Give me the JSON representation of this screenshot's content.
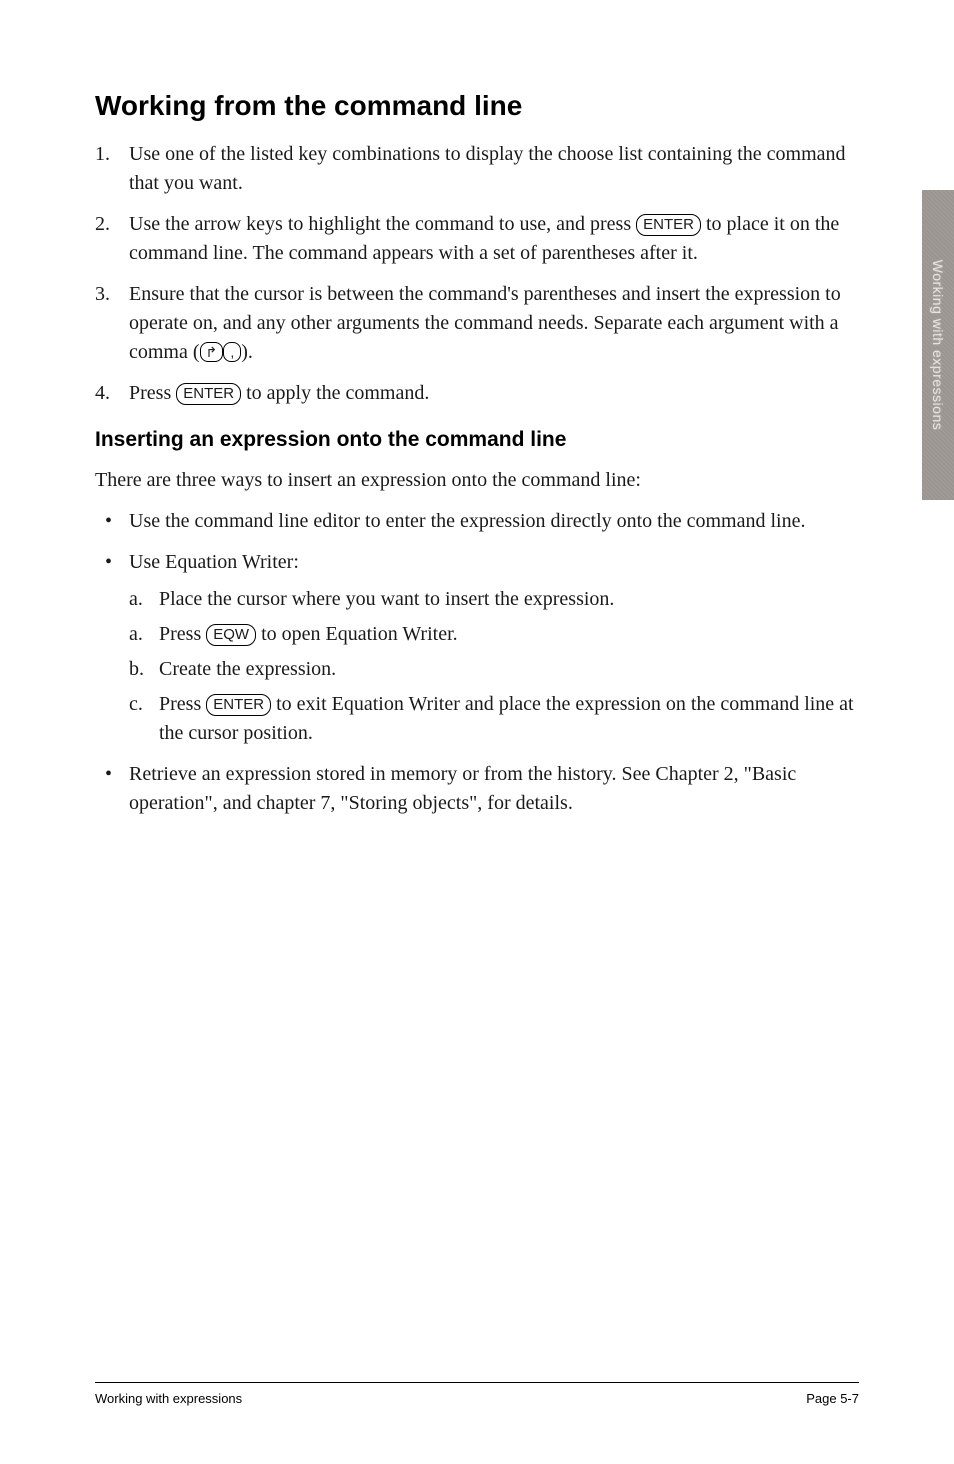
{
  "title": "Working from the command line",
  "steps": [
    "Use one of the listed key combinations to display the choose list containing the command that you want.",
    "Use the arrow keys to highlight the command to use, and press KEY_ENTER to place it on the command line. The command appears with a set of parentheses after it.",
    "Ensure that the cursor is between the command's parentheses and insert the expression to operate on, and any other arguments the command needs. Separate each argument with a comma (KEY_SHIFT KEY_COMMA).",
    "Press KEY_ENTER to apply the command."
  ],
  "subtitle": "Inserting an expression onto the command line",
  "intro": "There are three ways to insert an expression onto the command line:",
  "bullet1": "Use the command line editor to enter the expression directly onto the command line.",
  "bullet2_head": "Use Equation Writer:",
  "bullet2_steps": [
    {
      "marker": "a.",
      "text": "Place the cursor where you want to insert the expression."
    },
    {
      "marker": "a.",
      "text": "Press KEY_EQW to open Equation Writer."
    },
    {
      "marker": "b.",
      "text": "Create the expression."
    },
    {
      "marker": "c.",
      "text": "Press KEY_ENTER to exit Equation Writer and place the expression on the command line at the cursor position."
    }
  ],
  "bullet3": "Retrieve an expression stored in memory or from the history. See Chapter 2, \"Basic operation\", and chapter 7, \"Storing objects\", for details.",
  "side_tab": "Working with expressions",
  "footer_left": "Working with expressions",
  "footer_right": "Page 5-7",
  "keys": {
    "enter": "ENTER",
    "eqw": "EQW",
    "shift": "↱",
    "comma": ","
  }
}
